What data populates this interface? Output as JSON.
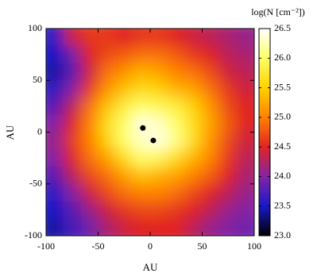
{
  "chart_data": {
    "type": "heatmap",
    "colorbar_label": "log(N [cm⁻²])",
    "xlabel": "AU",
    "ylabel": "AU",
    "xlim": [
      -100,
      100
    ],
    "ylim": [
      -100,
      100
    ],
    "xticks": [
      -100,
      -50,
      0,
      50,
      100
    ],
    "yticks": [
      -100,
      -50,
      0,
      50,
      100
    ],
    "zlim": [
      23.0,
      26.5
    ],
    "zticks": [
      {
        "value": 23.0,
        "label": "23.0"
      },
      {
        "value": 23.5,
        "label": "23.5"
      },
      {
        "value": 24.0,
        "label": "24.0"
      },
      {
        "value": 24.5,
        "label": "24.5"
      },
      {
        "value": 25.0,
        "label": "25.0"
      },
      {
        "value": 25.5,
        "label": "25.5"
      },
      {
        "value": 26.0,
        "label": "26.0"
      },
      {
        "value": 26.5,
        "label": "26.5"
      }
    ],
    "colormap": [
      "#000000",
      "#1818c8",
      "#8424a4",
      "#e02424",
      "#ff8200",
      "#ffd200",
      "#ffff66",
      "#ffffff"
    ],
    "z": [
      [
        23.6,
        24.4,
        24.6,
        24.6,
        24.5,
        24.6,
        24.6,
        24.5,
        24.4,
        24.3,
        24.2,
        24.1
      ],
      [
        23.5,
        23.9,
        24.5,
        24.7,
        24.8,
        24.9,
        24.9,
        24.8,
        24.6,
        24.5,
        24.3,
        24.2
      ],
      [
        23.4,
        23.8,
        24.4,
        24.9,
        25.1,
        25.3,
        25.2,
        25.0,
        24.9,
        24.7,
        24.4,
        24.3
      ],
      [
        23.6,
        24.0,
        24.6,
        25.1,
        25.4,
        25.6,
        25.5,
        25.3,
        25.2,
        24.9,
        24.6,
        24.4
      ],
      [
        23.8,
        24.3,
        24.9,
        25.4,
        25.8,
        26.0,
        25.9,
        25.8,
        25.5,
        25.1,
        24.7,
        24.5
      ],
      [
        24.0,
        24.5,
        25.0,
        25.6,
        26.0,
        26.4,
        26.3,
        26.0,
        25.6,
        25.2,
        24.8,
        24.5
      ],
      [
        24.1,
        24.6,
        25.0,
        25.5,
        26.0,
        26.3,
        26.4,
        26.1,
        25.6,
        25.1,
        24.7,
        24.4
      ],
      [
        24.0,
        24.5,
        24.9,
        25.2,
        25.6,
        26.0,
        25.9,
        25.6,
        25.3,
        25.0,
        24.6,
        24.3
      ],
      [
        23.8,
        24.3,
        24.7,
        24.9,
        25.2,
        25.4,
        25.3,
        25.2,
        25.0,
        24.8,
        24.5,
        24.2
      ],
      [
        23.6,
        24.0,
        24.4,
        24.7,
        24.9,
        25.0,
        25.0,
        24.9,
        24.7,
        24.5,
        24.3,
        24.1
      ],
      [
        23.5,
        23.8,
        24.1,
        24.4,
        24.6,
        24.7,
        24.7,
        24.6,
        24.5,
        24.3,
        24.1,
        24.0
      ],
      [
        23.4,
        23.7,
        23.9,
        24.2,
        24.4,
        24.5,
        24.5,
        24.5,
        24.3,
        24.1,
        24.0,
        23.9
      ]
    ],
    "points": {
      "color": "#000000",
      "x": [
        -7,
        3
      ],
      "y": [
        4,
        -8
      ]
    }
  }
}
